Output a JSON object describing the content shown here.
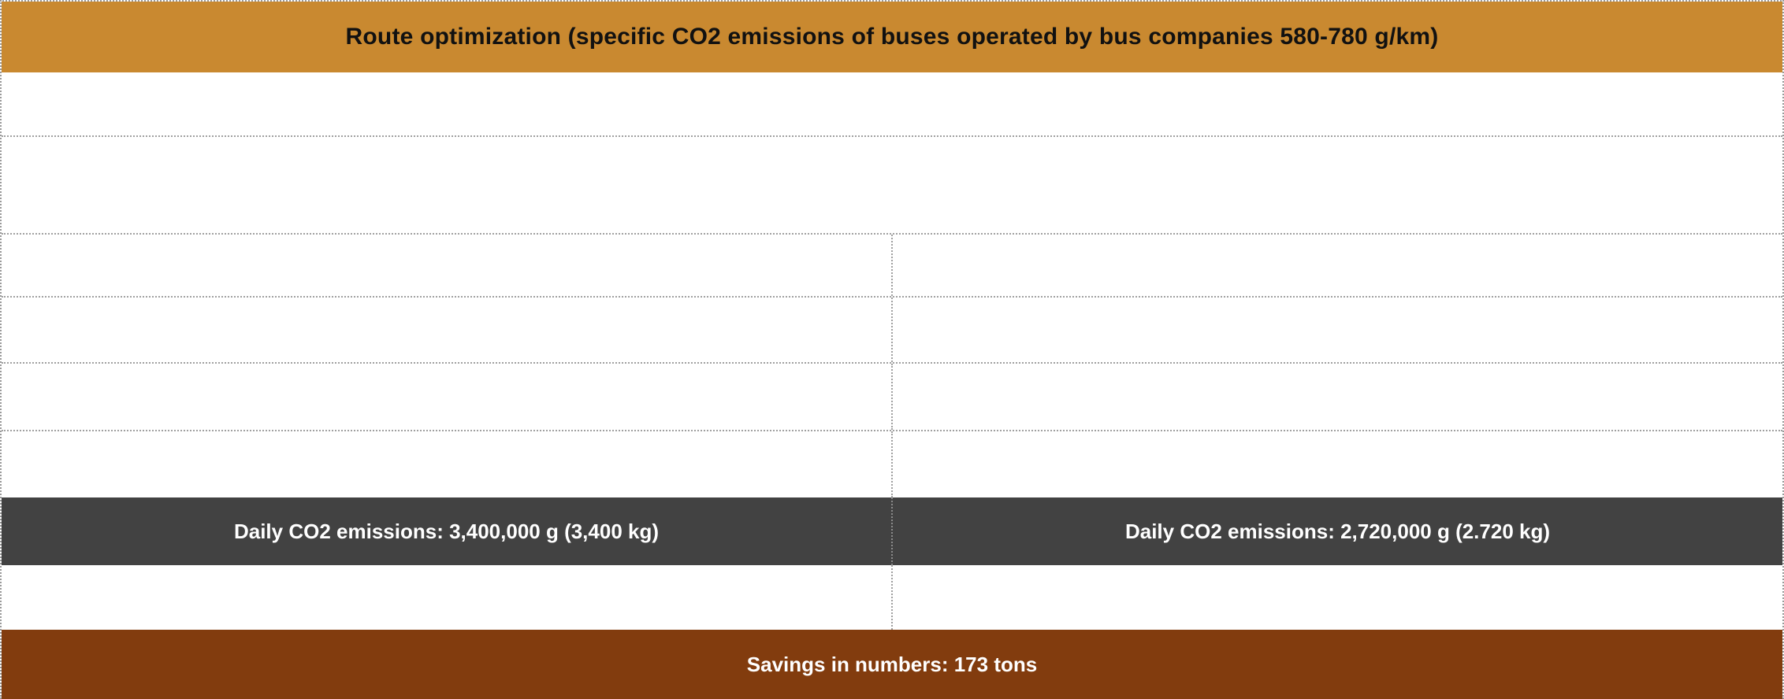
{
  "table": {
    "title": "Route optimization (specific CO2 emissions of buses operated by bus companies 580-780 g/km)",
    "emissions": {
      "left": "Daily CO2 emissions: 3,400,000 g (3,400 kg)",
      "right": "Daily CO2 emissions: 2,720,000 g (2.720 kg)"
    },
    "footer": "Savings in numbers: 173 tons"
  },
  "colors": {
    "header_bg": "#c98930",
    "emissions_bg": "#424242",
    "footer_bg": "#823c0e"
  }
}
